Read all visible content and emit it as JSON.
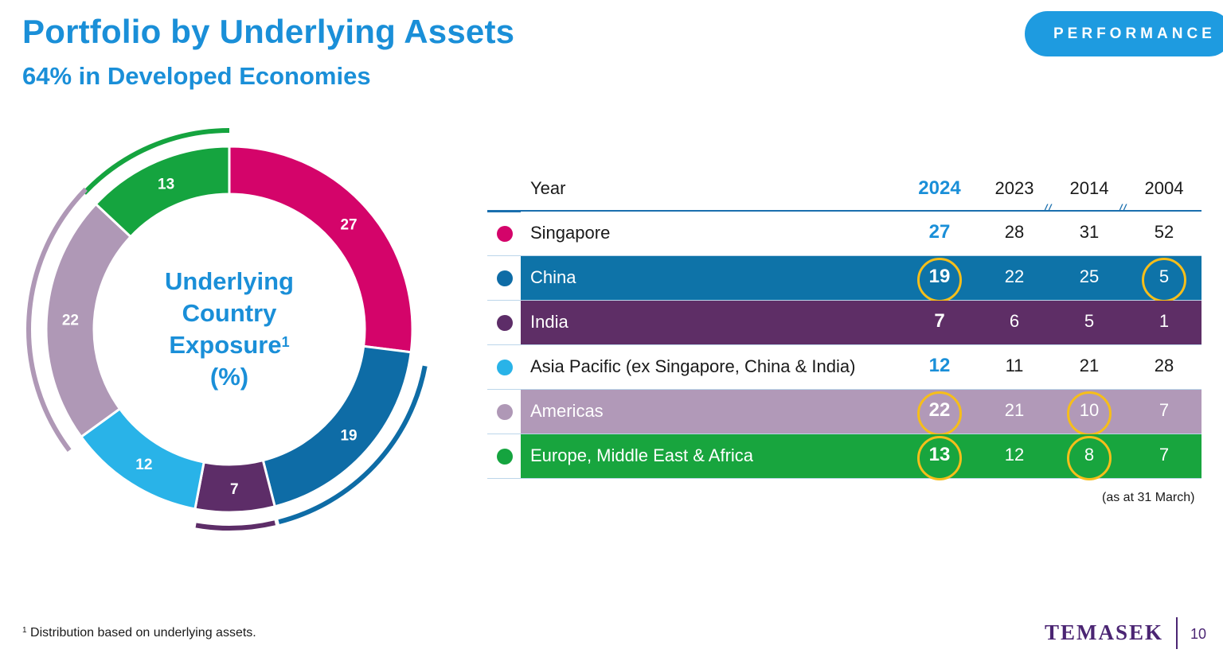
{
  "header": {
    "title": "Portfolio by Underlying Assets",
    "subtitle": "64% in Developed Economies",
    "section_pill": "PERFORMANCE"
  },
  "donut": {
    "center_line1": "Underlying",
    "center_line2": "Country",
    "center_line3": "Exposure",
    "center_sup": "1",
    "center_line4": "(%)"
  },
  "chart_data": [
    {
      "type": "pie",
      "variant": "donut",
      "categories": [
        "Singapore",
        "China",
        "India",
        "Asia Pacific (ex Singapore, China & India)",
        "Americas",
        "Europe, Middle East & Africa"
      ],
      "values": [
        27,
        19,
        7,
        12,
        22,
        13
      ],
      "colors": [
        "#d4046a",
        "#0e6ca6",
        "#5d2d68",
        "#29b3e8",
        "#af98b6",
        "#15a43f"
      ]
    },
    {
      "type": "table",
      "columns": [
        "Year",
        "2024",
        "2023",
        "2014",
        "2004"
      ],
      "rows": [
        {
          "name": "Singapore",
          "values": [
            "27",
            "28",
            "31",
            "52"
          ],
          "dot": "#d4046a",
          "fill": "#ffffff",
          "text": "#1a1a1a",
          "cur_text": "#1a8fd8",
          "rings": [
            false,
            false,
            false,
            false
          ]
        },
        {
          "name": "China",
          "values": [
            "19",
            "22",
            "25",
            "5"
          ],
          "dot": "#0e6ca6",
          "fill": "#0e73a8",
          "text": "#ffffff",
          "cur_text": "#ffffff",
          "rings": [
            true,
            false,
            false,
            true
          ]
        },
        {
          "name": "India",
          "values": [
            "7",
            "6",
            "5",
            "1"
          ],
          "dot": "#5d2d68",
          "fill": "#5e2e66",
          "text": "#ffffff",
          "cur_text": "#ffffff",
          "rings": [
            false,
            false,
            false,
            false
          ]
        },
        {
          "name": "Asia Pacific (ex Singapore, China & India)",
          "values": [
            "12",
            "11",
            "21",
            "28"
          ],
          "dot": "#29b3e8",
          "fill": "#ffffff",
          "text": "#1a1a1a",
          "cur_text": "#1a8fd8",
          "rings": [
            false,
            false,
            false,
            false
          ]
        },
        {
          "name": "Americas",
          "values": [
            "22",
            "21",
            "10",
            "7"
          ],
          "dot": "#af98b6",
          "fill": "#b199b8",
          "text": "#ffffff",
          "cur_text": "#ffffff",
          "rings": [
            true,
            false,
            true,
            false
          ]
        },
        {
          "name": "Europe, Middle East & Africa",
          "values": [
            "13",
            "12",
            "8",
            "7"
          ],
          "dot": "#15a43f",
          "fill": "#18a53e",
          "text": "#ffffff",
          "cur_text": "#ffffff",
          "rings": [
            true,
            false,
            true,
            false
          ]
        }
      ],
      "highlight_color": "#f6be1a"
    }
  ],
  "table_note": "(as at 31 March)",
  "footnote": {
    "sup": "1",
    "text": " Distribution based on underlying assets."
  },
  "footer": {
    "logo": "TEMASEK",
    "page": "10"
  }
}
